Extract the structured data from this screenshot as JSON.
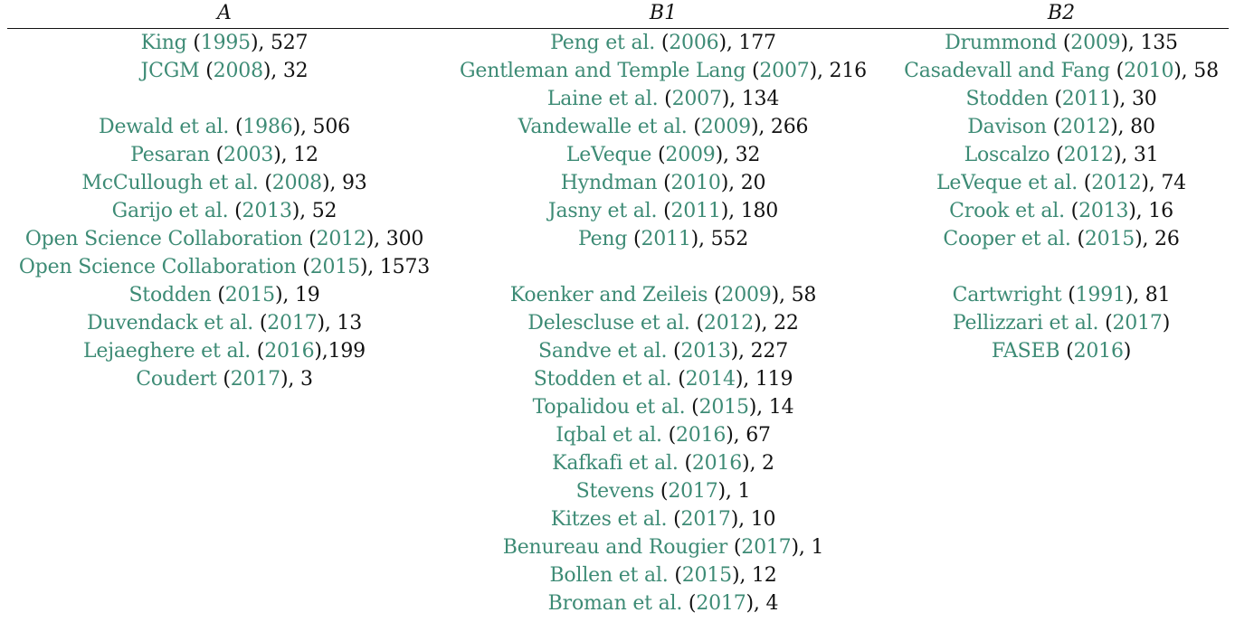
{
  "headers": [
    "A",
    "B1",
    "B2"
  ],
  "columns": [
    [
      {
        "author": "King",
        "year": "1995",
        "sep": ", ",
        "count": "527"
      },
      {
        "author": "JCGM",
        "year": "2008",
        "sep": ", ",
        "count": "32"
      },
      null,
      {
        "author": "Dewald et al.",
        "year": "1986",
        "sep": ", ",
        "count": "506"
      },
      {
        "author": "Pesaran",
        "year": "2003",
        "sep": ", ",
        "count": "12"
      },
      {
        "author": "McCullough et al.",
        "year": "2008",
        "sep": ", ",
        "count": "93"
      },
      {
        "author": "Garijo et al.",
        "year": "2013",
        "sep": ", ",
        "count": "52"
      },
      {
        "author": "Open Science Collaboration",
        "year": "2012",
        "sep": ", ",
        "count": "300"
      },
      {
        "author": "Open Science Collaboration",
        "year": "2015",
        "sep": ", ",
        "count": "1573"
      },
      {
        "author": "Stodden",
        "year": "2015",
        "sep": ", ",
        "count": "19"
      },
      {
        "author": "Duvendack et al.",
        "year": "2017",
        "sep": ", ",
        "count": "13"
      },
      {
        "author": "Lejaeghere et al.",
        "year": "2016",
        "sep": ",",
        "count": "199"
      },
      {
        "author": "Coudert",
        "year": "2017",
        "sep": ", ",
        "count": "3"
      }
    ],
    [
      {
        "author": "Peng et al.",
        "year": "2006",
        "sep": ", ",
        "count": "177"
      },
      {
        "author": "Gentleman and Temple Lang",
        "year": "2007",
        "sep": ", ",
        "count": "216"
      },
      {
        "author": "Laine et al.",
        "year": "2007",
        "sep": ", ",
        "count": "134"
      },
      {
        "author": "Vandewalle et al.",
        "year": "2009",
        "sep": ", ",
        "count": "266"
      },
      {
        "author": "LeVeque",
        "year": "2009",
        "sep": ", ",
        "count": "32"
      },
      {
        "author": "Hyndman",
        "year": "2010",
        "sep": ", ",
        "count": "20"
      },
      {
        "author": "Jasny et al.",
        "year": "2011",
        "sep": ", ",
        "count": "180"
      },
      {
        "author": "Peng",
        "year": "2011",
        "sep": ", ",
        "count": "552"
      },
      null,
      {
        "author": "Koenker and Zeileis",
        "year": "2009",
        "sep": ", ",
        "count": "58"
      },
      {
        "author": "Delescluse et al.",
        "year": "2012",
        "sep": ", ",
        "count": "22"
      },
      {
        "author": "Sandve et al.",
        "year": "2013",
        "sep": ", ",
        "count": "227"
      },
      {
        "author": "Stodden et al.",
        "year": "2014",
        "sep": ", ",
        "count": "119"
      },
      {
        "author": "Topalidou et al.",
        "year": "2015",
        "sep": ", ",
        "count": "14"
      },
      {
        "author": "Iqbal et al.",
        "year": "2016",
        "sep": ", ",
        "count": "67"
      },
      {
        "author": "Kafkafi et al.",
        "year": "2016",
        "sep": ", ",
        "count": "2"
      },
      {
        "author": "Stevens",
        "year": "2017",
        "sep": ", ",
        "count": "1"
      },
      {
        "author": "Kitzes et al.",
        "year": "2017",
        "sep": ", ",
        "count": "10"
      },
      {
        "author": "Benureau and Rougier",
        "year": "2017",
        "sep": ", ",
        "count": "1"
      },
      {
        "author": "Bollen et al.",
        "year": "2015",
        "sep": ", ",
        "count": "12"
      },
      {
        "author": "Broman et al.",
        "year": "2017",
        "sep": ", ",
        "count": "4"
      }
    ],
    [
      {
        "author": "Drummond",
        "year": "2009",
        "sep": ", ",
        "count": "135"
      },
      {
        "author": "Casadevall and Fang",
        "year": "2010",
        "sep": ", ",
        "count": "58"
      },
      {
        "author": "Stodden",
        "year": "2011",
        "sep": ", ",
        "count": "30"
      },
      {
        "author": "Davison",
        "year": "2012",
        "sep": ", ",
        "count": "80"
      },
      {
        "author": "Loscalzo",
        "year": "2012",
        "sep": ", ",
        "count": "31"
      },
      {
        "author": "LeVeque et al.",
        "year": "2012",
        "sep": ", ",
        "count": "74"
      },
      {
        "author": "Crook et al.",
        "year": "2013",
        "sep": ", ",
        "count": "16"
      },
      {
        "author": "Cooper et al.",
        "year": "2015",
        "sep": ", ",
        "count": "26"
      },
      null,
      {
        "author": "Cartwright",
        "year": "1991",
        "sep": ", ",
        "count": "81"
      },
      {
        "author": "Pellizzari et al.",
        "year": "2017",
        "sep": "",
        "count": ""
      },
      {
        "author": "FASEB",
        "year": "2016",
        "sep": "",
        "count": ""
      }
    ]
  ],
  "colors": {
    "link": "#3d8b75",
    "text": "#111111"
  }
}
